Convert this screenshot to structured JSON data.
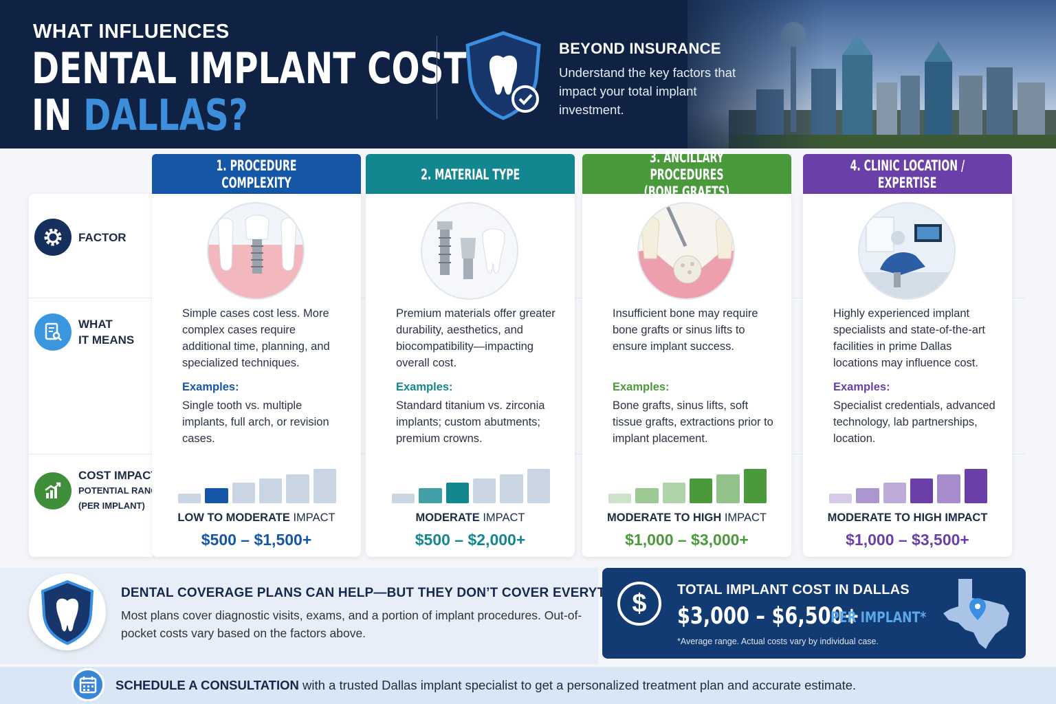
{
  "header": {
    "subtitle": "WHAT INFLUENCES",
    "title_line1": "DENTAL IMPLANT COSTS",
    "title_line2_prefix": "IN ",
    "title_line2_accent": "DALLAS?",
    "beyond_title": "BEYOND INSURANCE",
    "beyond_text": "Understand the key factors that impact your total implant investment."
  },
  "rows": {
    "factor": "FACTOR",
    "what_line1": "WHAT",
    "what_line2": "IT MEANS",
    "cost": "COST IMPACT",
    "cost_small1": "POTENTIAL RANGE",
    "cost_small2": "(PER IMPLANT)"
  },
  "columns": [
    {
      "header_line1": "1. PROCEDURE COMPLEXITY",
      "header_line2": "",
      "color": "#1557a6",
      "description": "Simple cases cost less. More complex cases require additional time, planning, and specialized techniques.",
      "examples_label": "Examples:",
      "examples": "Single tooth vs. multiple implants, full arch, or revision cases.",
      "impact_bold": "LOW TO MODERATE",
      "impact_rest": " IMPACT",
      "range": "$500 – $1,500+",
      "level": 2
    },
    {
      "header_line1": "2. MATERIAL TYPE",
      "header_line2": "",
      "color": "#138790",
      "description": "Premium materials offer greater durability, aesthetics, and biocompatibility—impacting overall cost.",
      "examples_label": "Examples:",
      "examples": "Standard titanium vs. zirconia implants; custom abutments; premium crowns.",
      "impact_bold": "MODERATE",
      "impact_rest": " IMPACT",
      "range": "$500 – $2,000+",
      "level": 3
    },
    {
      "header_line1": "3. ANCILLARY PROCEDURES",
      "header_line2": "(BONE GRAFTS)",
      "color": "#4a9a3c",
      "description": "Insufficient bone may require bone grafts or sinus lifts to ensure implant success.",
      "examples_label": "Examples:",
      "examples": "Bone grafts, sinus lifts, soft tissue grafts, extractions prior to implant placement.",
      "impact_bold": "MODERATE TO HIGH",
      "impact_rest": " IMPACT",
      "range": "$1,000 – $3,000+",
      "level": 6
    },
    {
      "header_line1": "4. CLINIC LOCATION /",
      "header_line2": "EXPERTISE",
      "color": "#6a3fa8",
      "description": "Highly experienced implant specialists and state-of-the-art facilities in prime Dallas locations may influence cost.",
      "examples_label": "Examples:",
      "examples": "Specialist credentials, advanced technology, lab partnerships, location.",
      "impact_bold": "MODERATE TO HIGH IMPACT",
      "impact_rest": "",
      "range": "$1,000 – $3,500+",
      "level": 6
    }
  ],
  "coverage": {
    "title": "DENTAL COVERAGE PLANS CAN HELP—BUT THEY DON’T COVER EVERYTHING.",
    "text": "Most plans cover diagnostic visits, exams, and a portion of implant procedures. Out-of-pocket costs vary based on the factors above."
  },
  "total": {
    "title": "TOTAL IMPLANT COST IN DALLAS",
    "range": "$3,000 – $6,500+",
    "unit": "PER IMPLANT*",
    "note": "*Average range. Actual costs vary by individual case.",
    "currency_symbol": "$"
  },
  "cta": {
    "bold": "SCHEDULE A CONSULTATION",
    "rest": " with a trusted Dallas implant specialist to get a personalized treatment plan and accurate estimate."
  },
  "icons": {
    "factor": "gear-icon",
    "what": "document-search-icon",
    "cost": "growth-chart-icon",
    "shield": "tooth-shield-icon",
    "texas": "texas-map-pin-icon",
    "calendar": "calendar-icon"
  }
}
